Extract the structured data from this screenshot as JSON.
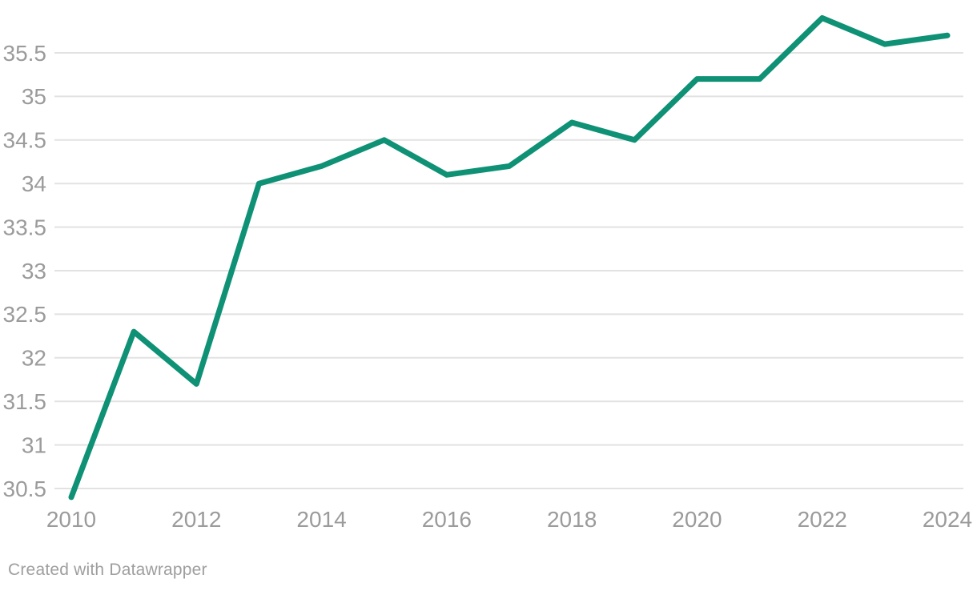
{
  "attribution": "Created with Datawrapper",
  "colors": {
    "line": "#0e9175",
    "grid": "#e2e2e2",
    "tick_label": "#9b9b9b",
    "attribution_text": "#9e9e9e",
    "background": "#ffffff"
  },
  "chart_data": {
    "type": "line",
    "title": "",
    "xlabel": "",
    "ylabel": "",
    "legend": "none",
    "grid": "horizontal",
    "x": [
      2010,
      2011,
      2012,
      2013,
      2014,
      2015,
      2016,
      2017,
      2018,
      2019,
      2020,
      2021,
      2022,
      2023,
      2024
    ],
    "values": [
      30.4,
      32.3,
      31.7,
      34.0,
      34.2,
      34.5,
      34.1,
      34.2,
      34.7,
      34.5,
      35.2,
      35.2,
      35.9,
      35.6,
      35.7
    ],
    "x_ticks": [
      2010,
      2012,
      2014,
      2016,
      2018,
      2020,
      2022,
      2024
    ],
    "y_ticks": [
      30.5,
      31,
      31.5,
      32,
      32.5,
      33,
      33.5,
      34,
      34.5,
      35,
      35.5
    ],
    "y_gridline_range": [
      30.5,
      35.5
    ]
  }
}
